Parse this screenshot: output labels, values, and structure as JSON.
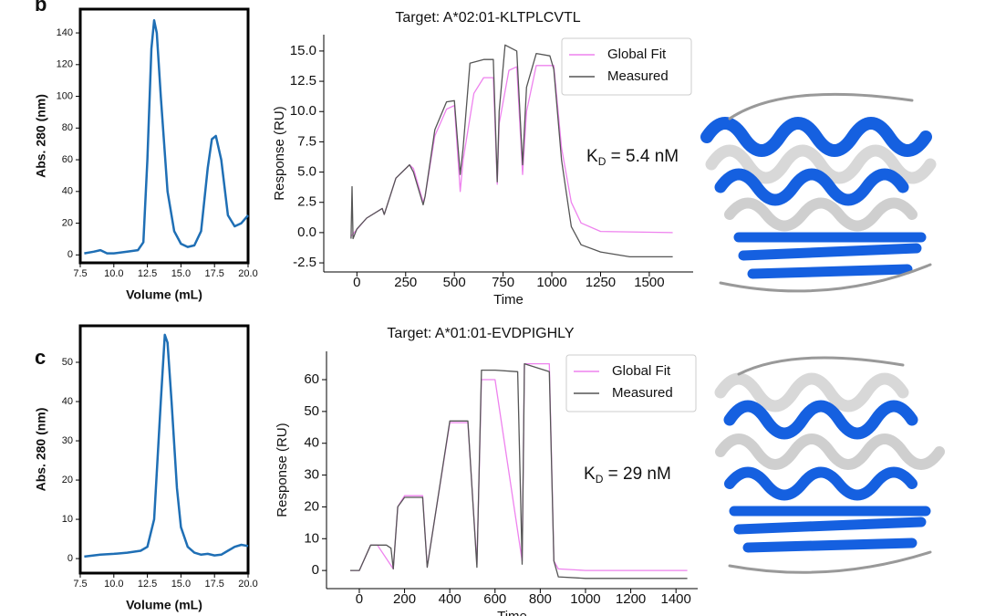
{
  "panel_labels": [
    "b",
    "c"
  ],
  "chart_data": [
    {
      "type": "line",
      "ylabel": "Abs. 280 (nm)",
      "xlabel": "Volume (mL)",
      "color": "#1f6fb5",
      "x": [
        7.8,
        8.5,
        9,
        9.5,
        10,
        11,
        11.8,
        12.2,
        12.5,
        12.8,
        13,
        13.2,
        13.5,
        14,
        14.5,
        15,
        15.5,
        16,
        16.5,
        17,
        17.3,
        17.6,
        18,
        18.5,
        19,
        19.5,
        20
      ],
      "values": [
        1,
        2,
        3,
        1,
        1,
        2,
        3,
        8,
        60,
        130,
        148,
        140,
        100,
        40,
        15,
        7,
        5,
        6,
        15,
        55,
        73,
        75,
        60,
        25,
        18,
        20,
        25
      ],
      "xlim": [
        7.5,
        20.0
      ],
      "ylim": [
        -5,
        155
      ],
      "xticks": [
        7.5,
        {
          "value": 10,
          "label": "10.0"
        },
        12.5,
        {
          "value": 15,
          "label": "15.0"
        },
        17.5,
        {
          "value": 20,
          "label": "20.0"
        }
      ],
      "yticks": [
        0,
        20,
        40,
        60,
        80,
        100,
        120,
        140
      ]
    },
    {
      "type": "line",
      "title": "Target: A*02:01-KLTPLCVTL",
      "xlabel": "Time",
      "ylabel": "Response (RU)",
      "legend": "upper right",
      "annotation": {
        "symbol": "K",
        "subscript": "D",
        "text": " = 5.4 nM"
      },
      "series": [
        {
          "name": "Global Fit",
          "color": "#ee82ee",
          "x": [
            -30,
            50,
            130,
            140,
            200,
            270,
            290,
            340,
            350,
            400,
            460,
            500,
            530,
            545,
            600,
            650,
            700,
            720,
            730,
            780,
            820,
            850,
            870,
            920,
            990,
            1010,
            1050,
            1100,
            1150,
            1250,
            1620
          ],
          "values": [
            -0.3,
            1.2,
            2.0,
            1.5,
            4.5,
            5.6,
            5.3,
            2.5,
            3.0,
            8.0,
            10.2,
            10.5,
            3.4,
            6.0,
            11.5,
            12.8,
            12.8,
            4.0,
            9.0,
            13.4,
            13.7,
            4.8,
            10.0,
            13.8,
            13.8,
            13.8,
            7.0,
            2.5,
            0.8,
            0.1,
            0.0
          ]
        },
        {
          "name": "Measured",
          "color": "#555555",
          "x": [
            -30,
            -25,
            -20,
            0,
            50,
            130,
            140,
            200,
            270,
            290,
            340,
            350,
            400,
            460,
            500,
            530,
            545,
            580,
            650,
            700,
            720,
            730,
            760,
            820,
            850,
            870,
            920,
            990,
            1010,
            1050,
            1100,
            1150,
            1250,
            1400,
            1620
          ],
          "values": [
            -0.5,
            3.8,
            -0.5,
            0.3,
            1.2,
            2.0,
            1.5,
            4.5,
            5.6,
            5.0,
            2.3,
            3.0,
            8.5,
            10.8,
            10.9,
            4.8,
            7.0,
            14.0,
            14.3,
            14.3,
            4.2,
            10.0,
            15.5,
            15.0,
            5.6,
            12.0,
            14.8,
            14.6,
            13.5,
            6.0,
            0.5,
            -1.0,
            -1.6,
            -2.0,
            -2.0
          ]
        }
      ],
      "xlim": [
        -170,
        1725
      ],
      "ylim": [
        -3.25,
        16.35
      ],
      "xticks": [
        0,
        250,
        500,
        750,
        1000,
        1250,
        1500
      ],
      "yticks": [
        -2.5,
        {
          "value": 0,
          "label": "0.0"
        },
        2.5,
        {
          "value": 5,
          "label": "5.0"
        },
        7.5,
        {
          "value": 10,
          "label": "10.0"
        },
        12.5,
        {
          "value": 15,
          "label": "15.0"
        }
      ]
    },
    {
      "type": "line",
      "ylabel": "Abs. 280 (nm)",
      "xlabel": "Volume (mL)",
      "color": "#1f6fb5",
      "x": [
        7.8,
        9,
        10,
        11,
        12,
        12.5,
        13,
        13.5,
        13.8,
        14,
        14.3,
        14.7,
        15,
        15.5,
        16,
        16.5,
        17,
        17.5,
        18,
        18.5,
        19,
        19.5,
        20
      ],
      "values": [
        0.5,
        1,
        1.2,
        1.5,
        2,
        3,
        10,
        40,
        57,
        55,
        40,
        18,
        8,
        3,
        1.5,
        1,
        1.2,
        0.8,
        1,
        2,
        3,
        3.5,
        3.2
      ],
      "xlim": [
        7.5,
        20.0
      ],
      "ylim": [
        -3.7,
        59.3
      ],
      "xticks": [
        7.5,
        {
          "value": 10,
          "label": "10.0"
        },
        12.5,
        {
          "value": 15,
          "label": "15.0"
        },
        17.5,
        {
          "value": 20,
          "label": "20.0"
        }
      ],
      "yticks": [
        0,
        10,
        20,
        30,
        40,
        50
      ]
    },
    {
      "type": "line",
      "title": "Target: A*01:01-EVDPIGHLY",
      "xlabel": "Time",
      "ylabel": "Response (RU)",
      "legend": "upper right",
      "annotation": {
        "symbol": "K",
        "subscript": "D",
        "text": " = 29 nM"
      },
      "series": [
        {
          "name": "Global Fit",
          "color": "#ee82ee",
          "x": [
            -40,
            0,
            50,
            80,
            150,
            170,
            200,
            280,
            300,
            400,
            480,
            520,
            540,
            600,
            720,
            730,
            840,
            860,
            880,
            1000,
            1450
          ],
          "values": [
            0,
            0,
            8,
            8,
            0.5,
            20,
            23.5,
            23.5,
            1.2,
            46.5,
            46.5,
            2,
            60,
            60,
            3,
            65,
            65,
            3,
            0.5,
            0,
            0
          ]
        },
        {
          "name": "Measured",
          "color": "#555555",
          "x": [
            -40,
            0,
            50,
            120,
            140,
            150,
            170,
            200,
            280,
            300,
            400,
            480,
            520,
            540,
            600,
            700,
            720,
            730,
            840,
            860,
            880,
            1000,
            1450
          ],
          "values": [
            0,
            0,
            8,
            8,
            7,
            0.5,
            20,
            23,
            23,
            1,
            47,
            47,
            1,
            63,
            63,
            62.5,
            2,
            65,
            62.5,
            3,
            -2,
            -2.5,
            -2.5
          ]
        }
      ],
      "xlim": [
        -145,
        1496
      ],
      "ylim": [
        -5.7,
        68.9
      ],
      "xticks": [
        0,
        200,
        400,
        600,
        800,
        1000,
        1200,
        1400
      ],
      "yticks": [
        0,
        10,
        20,
        30,
        40,
        50,
        60
      ]
    }
  ]
}
